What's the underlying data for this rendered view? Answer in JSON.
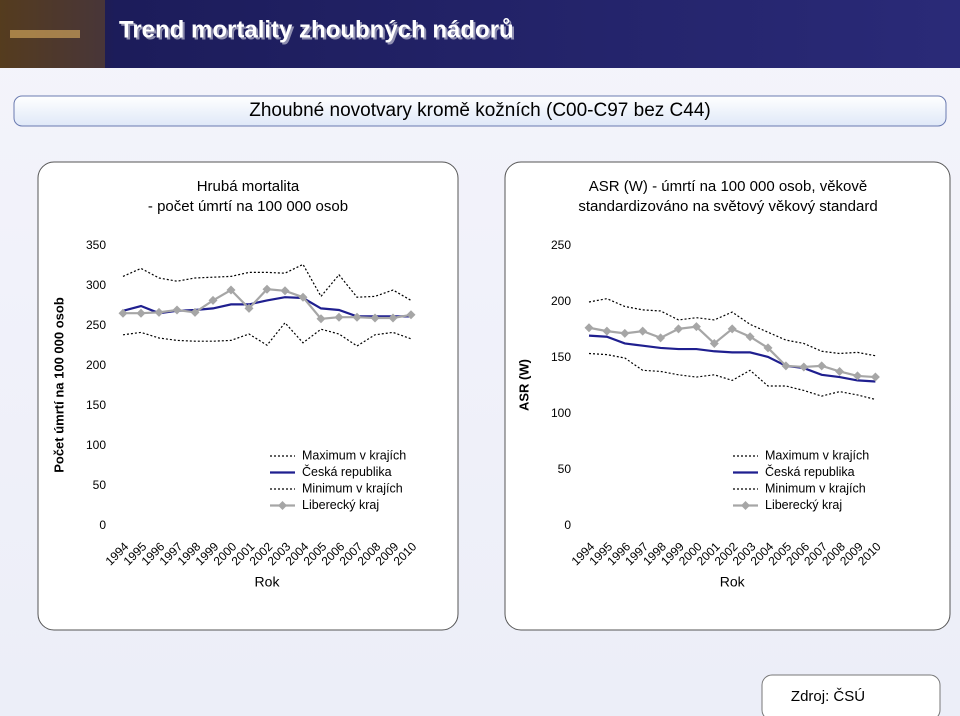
{
  "header": {
    "title": "Trend mortality zhoubných nádorů"
  },
  "subtitle": "Zhoubné novotvary kromě kožních (C00-C97 bez C44)",
  "source": "Zdroj: ČSÚ",
  "chart_data": [
    {
      "type": "line",
      "title": [
        "Hrubá mortalita",
        "- počet úmrtí na 100 000 osob"
      ],
      "ylabel": "Počet úmrtí na 100 000 osob",
      "xlabel": "Rok",
      "categories": [
        "1994",
        "1995",
        "1996",
        "1997",
        "1998",
        "1999",
        "2000",
        "2001",
        "2002",
        "2003",
        "2004",
        "2005",
        "2006",
        "2007",
        "2008",
        "2009",
        "2010"
      ],
      "ylim": [
        0,
        350
      ],
      "yticks": [
        0,
        50,
        100,
        150,
        200,
        250,
        300,
        350
      ],
      "legend": "right",
      "series": [
        {
          "name": "Maximum v krajích",
          "color": "#000000",
          "dash": "dotted",
          "values": [
            312,
            322,
            310,
            306,
            310,
            311,
            312,
            317,
            317,
            316,
            327,
            287,
            314,
            286,
            287,
            295,
            282
          ]
        },
        {
          "name": "Česká republika",
          "color": "#1f1f8f",
          "dash": "solid",
          "values": [
            269,
            275,
            266,
            269,
            270,
            272,
            277,
            277,
            282,
            286,
            285,
            272,
            270,
            262,
            262,
            262,
            262
          ]
        },
        {
          "name": "Minimum v krajích",
          "color": "#000000",
          "dash": "dotted",
          "values": [
            239,
            242,
            235,
            232,
            231,
            231,
            232,
            240,
            226,
            254,
            229,
            246,
            240,
            225,
            239,
            242,
            234
          ]
        },
        {
          "name": "Liberecký kraj",
          "color": "#a6a6a6",
          "dash": "solid",
          "marker": "diamond",
          "values": [
            266,
            266,
            267,
            270,
            267,
            282,
            295,
            272,
            296,
            294,
            286,
            259,
            261,
            261,
            260,
            260,
            264
          ]
        }
      ]
    },
    {
      "type": "line",
      "title": [
        "ASR (W) - úmrtí na 100 000 osob, věkově",
        "standardizováno na světový věkový standard"
      ],
      "ylabel": "ASR (W)",
      "xlabel": "Rok",
      "categories": [
        "1994",
        "1995",
        "1996",
        "1997",
        "1998",
        "1999",
        "2000",
        "2001",
        "2002",
        "2003",
        "2004",
        "2005",
        "2006",
        "2007",
        "2008",
        "2009",
        "2010"
      ],
      "ylim": [
        0,
        250
      ],
      "yticks": [
        0,
        50,
        100,
        150,
        200,
        250
      ],
      "legend": "right",
      "series": [
        {
          "name": "Maximum v krajích",
          "color": "#000000",
          "dash": "dotted",
          "values": [
            200,
            203,
            196,
            193,
            192,
            184,
            186,
            184,
            191,
            180,
            173,
            166,
            163,
            156,
            154,
            155,
            152
          ]
        },
        {
          "name": "Česká republika",
          "color": "#1f1f8f",
          "dash": "solid",
          "values": [
            170,
            169,
            163,
            161,
            159,
            158,
            158,
            156,
            155,
            155,
            151,
            143,
            141,
            135,
            133,
            130,
            129
          ]
        },
        {
          "name": "Minimum v krajích",
          "color": "#000000",
          "dash": "dotted",
          "values": [
            154,
            153,
            150,
            139,
            138,
            135,
            133,
            135,
            130,
            139,
            125,
            125,
            121,
            116,
            120,
            117,
            113
          ]
        },
        {
          "name": "Liberecký kraj",
          "color": "#a6a6a6",
          "dash": "solid",
          "marker": "diamond",
          "values": [
            177,
            174,
            172,
            174,
            168,
            176,
            178,
            163,
            176,
            169,
            159,
            143,
            142,
            143,
            138,
            134,
            133
          ]
        }
      ]
    }
  ]
}
